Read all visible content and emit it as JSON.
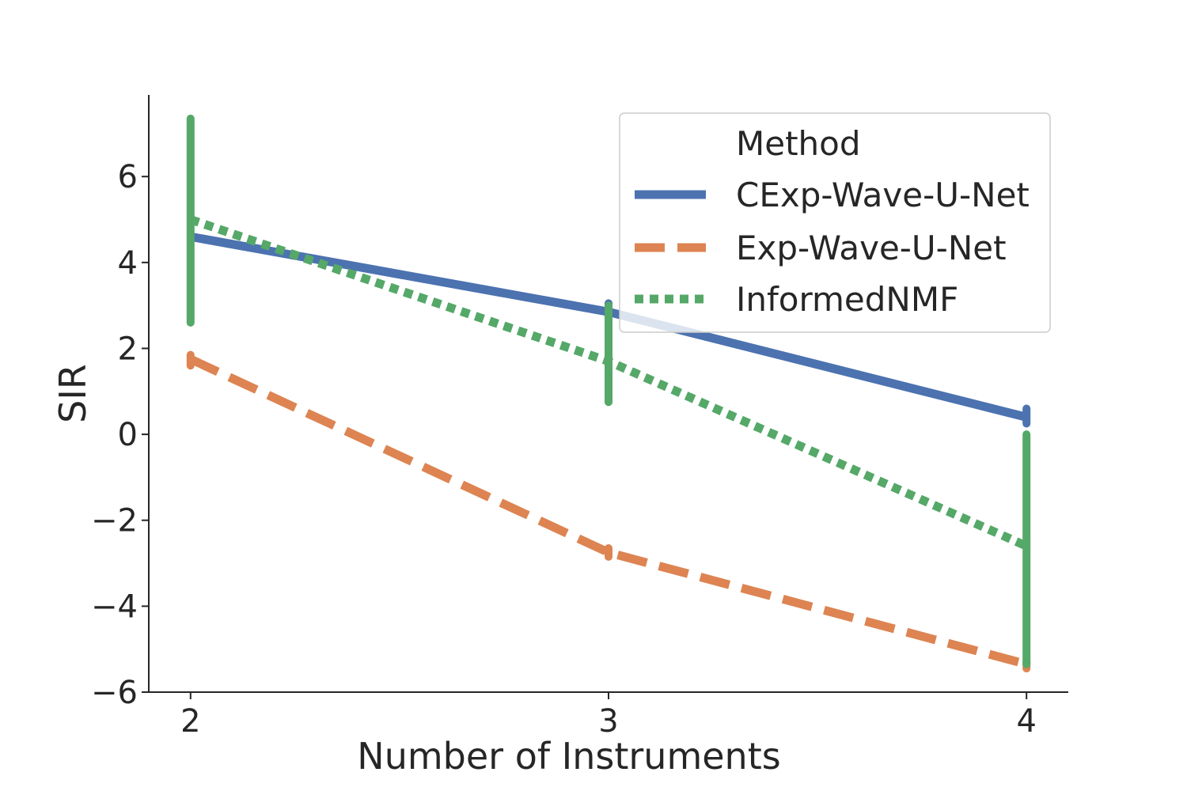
{
  "chart_data": {
    "type": "line",
    "title": "",
    "xlabel": "Number of Instruments",
    "ylabel": "SIR",
    "x": [
      2,
      3,
      4
    ],
    "x_tick_labels": [
      "2",
      "3",
      "4"
    ],
    "xlim": [
      1.9,
      4.1
    ],
    "ylim": [
      -6.0,
      7.9
    ],
    "y_ticks": [
      6,
      4,
      2,
      0,
      -2,
      -4,
      -6
    ],
    "y_tick_labels": [
      "6",
      "4",
      "2",
      "0",
      "−2",
      "−4",
      "−6"
    ],
    "grid": false,
    "legend": {
      "title": "Method",
      "placement": "top-right"
    },
    "series": [
      {
        "name": "CExp-Wave-U-Net",
        "color": "#4c72b0",
        "dash": "solid",
        "values": [
          4.6,
          2.85,
          0.4
        ],
        "error_low": [
          4.6,
          2.65,
          0.25
        ],
        "error_high": [
          4.6,
          3.05,
          0.6
        ]
      },
      {
        "name": "Exp-Wave-U-Net",
        "color": "#dd8452",
        "dash": "dashed",
        "values": [
          1.75,
          -2.75,
          -5.35
        ],
        "error_low": [
          1.6,
          -2.85,
          -5.45
        ],
        "error_high": [
          1.85,
          -2.65,
          -5.3
        ]
      },
      {
        "name": "InformedNMF",
        "color": "#55a868",
        "dash": "dotted",
        "values": [
          5.0,
          1.7,
          -2.6
        ],
        "error_low": [
          2.6,
          0.75,
          -5.35
        ],
        "error_high": [
          7.35,
          3.0,
          0.0
        ]
      }
    ]
  }
}
